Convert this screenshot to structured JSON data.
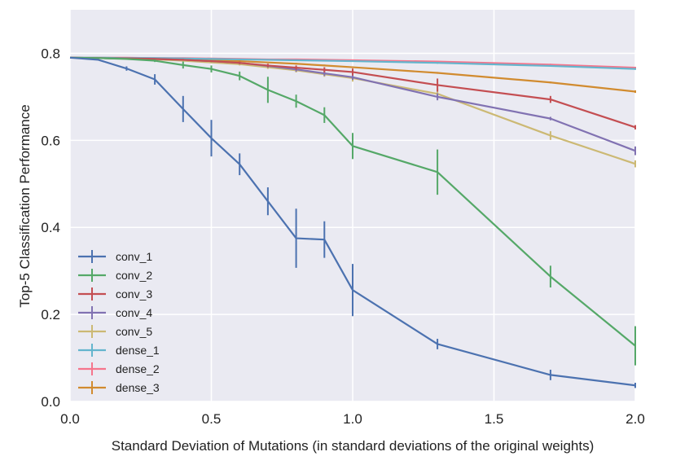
{
  "chart_data": {
    "type": "line",
    "title": "",
    "xlabel": "Standard Deviation of Mutations (in standard deviations of the original weights)",
    "ylabel": "Top-5 Classification Performance",
    "xlim": [
      0.0,
      2.0
    ],
    "ylim": [
      0.0,
      0.9
    ],
    "xticks": [
      0.0,
      0.5,
      1.0,
      1.5,
      2.0
    ],
    "xtick_labels": [
      "0.0",
      "0.5",
      "1.0",
      "1.5",
      "2.0"
    ],
    "yticks": [
      0.0,
      0.2,
      0.4,
      0.6,
      0.8
    ],
    "ytick_labels": [
      "0.0",
      "0.2",
      "0.4",
      "0.6",
      "0.8"
    ],
    "grid": true,
    "legend_position": "lower-left",
    "series": [
      {
        "name": "conv_1",
        "color": "#4c72b0",
        "x": [
          0.0,
          0.1,
          0.2,
          0.3,
          0.4,
          0.5,
          0.6,
          0.7,
          0.8,
          0.9,
          1.0,
          1.3,
          1.7,
          2.0
        ],
        "y": [
          0.79,
          0.785,
          0.765,
          0.74,
          0.672,
          0.605,
          0.545,
          0.46,
          0.375,
          0.372,
          0.256,
          0.132,
          0.061,
          0.037
        ],
        "err": [
          0.0,
          0.0,
          0.005,
          0.012,
          0.03,
          0.042,
          0.025,
          0.032,
          0.068,
          0.042,
          0.06,
          0.012,
          0.012,
          0.006
        ]
      },
      {
        "name": "conv_2",
        "color": "#55a868",
        "x": [
          0.0,
          0.1,
          0.2,
          0.3,
          0.4,
          0.5,
          0.6,
          0.7,
          0.8,
          0.9,
          1.0,
          1.3,
          1.7,
          2.0
        ],
        "y": [
          0.79,
          0.789,
          0.787,
          0.783,
          0.773,
          0.764,
          0.748,
          0.716,
          0.69,
          0.658,
          0.587,
          0.527,
          0.287,
          0.128
        ],
        "err": [
          0.0,
          0.0,
          0.002,
          0.003,
          0.008,
          0.008,
          0.01,
          0.03,
          0.015,
          0.018,
          0.03,
          0.052,
          0.025,
          0.045
        ]
      },
      {
        "name": "conv_3",
        "color": "#c44e52",
        "x": [
          0.0,
          0.1,
          0.2,
          0.3,
          0.4,
          0.5,
          0.6,
          0.7,
          0.8,
          0.9,
          1.0,
          1.3,
          1.7,
          2.0
        ],
        "y": [
          0.79,
          0.789,
          0.788,
          0.787,
          0.785,
          0.782,
          0.778,
          0.772,
          0.767,
          0.762,
          0.757,
          0.727,
          0.694,
          0.63
        ],
        "err": [
          0.0,
          0.0,
          0.001,
          0.001,
          0.002,
          0.002,
          0.003,
          0.004,
          0.005,
          0.006,
          0.008,
          0.015,
          0.008,
          0.005
        ]
      },
      {
        "name": "conv_4",
        "color": "#8172b2",
        "x": [
          0.0,
          0.1,
          0.2,
          0.3,
          0.4,
          0.5,
          0.6,
          0.7,
          0.8,
          0.9,
          1.0,
          1.3,
          1.7,
          2.0
        ],
        "y": [
          0.79,
          0.789,
          0.788,
          0.787,
          0.785,
          0.782,
          0.778,
          0.771,
          0.763,
          0.754,
          0.745,
          0.7,
          0.65,
          0.576
        ],
        "err": [
          0.0,
          0.0,
          0.001,
          0.001,
          0.002,
          0.002,
          0.003,
          0.004,
          0.005,
          0.006,
          0.006,
          0.008,
          0.004,
          0.01
        ]
      },
      {
        "name": "conv_5",
        "color": "#ccb974",
        "x": [
          0.0,
          0.1,
          0.2,
          0.3,
          0.4,
          0.5,
          0.6,
          0.7,
          0.8,
          0.9,
          1.0,
          1.3,
          1.7,
          2.0
        ],
        "y": [
          0.79,
          0.789,
          0.788,
          0.786,
          0.783,
          0.779,
          0.775,
          0.768,
          0.761,
          0.752,
          0.743,
          0.707,
          0.611,
          0.546
        ],
        "err": [
          0.0,
          0.0,
          0.001,
          0.001,
          0.002,
          0.002,
          0.003,
          0.004,
          0.005,
          0.006,
          0.008,
          0.012,
          0.01,
          0.008
        ]
      },
      {
        "name": "dense_1",
        "color": "#64b5cd",
        "x": [
          0.0,
          0.1,
          0.2,
          0.3,
          0.4,
          0.5,
          0.6,
          0.7,
          0.8,
          0.9,
          1.0,
          1.3,
          1.7,
          2.0
        ],
        "y": [
          0.79,
          0.79,
          0.789,
          0.789,
          0.788,
          0.787,
          0.786,
          0.785,
          0.784,
          0.783,
          0.782,
          0.778,
          0.771,
          0.764
        ],
        "err": [
          0.0,
          0.0,
          0.001,
          0.001,
          0.001,
          0.001,
          0.001,
          0.001,
          0.001,
          0.001,
          0.001,
          0.002,
          0.002,
          0.002
        ]
      },
      {
        "name": "dense_2",
        "color": "#f5758c",
        "x": [
          0.0,
          0.1,
          0.2,
          0.3,
          0.4,
          0.5,
          0.6,
          0.7,
          0.8,
          0.9,
          1.0,
          1.3,
          1.7,
          2.0
        ],
        "y": [
          0.79,
          0.79,
          0.79,
          0.789,
          0.789,
          0.788,
          0.787,
          0.786,
          0.786,
          0.785,
          0.784,
          0.781,
          0.774,
          0.767
        ],
        "err": [
          0.0,
          0.0,
          0.001,
          0.001,
          0.001,
          0.001,
          0.001,
          0.001,
          0.001,
          0.001,
          0.001,
          0.002,
          0.002,
          0.002
        ]
      },
      {
        "name": "dense_3",
        "color": "#d18b2f",
        "x": [
          0.0,
          0.1,
          0.2,
          0.3,
          0.4,
          0.5,
          0.6,
          0.7,
          0.8,
          0.9,
          1.0,
          1.3,
          1.7,
          2.0
        ],
        "y": [
          0.79,
          0.789,
          0.788,
          0.787,
          0.786,
          0.784,
          0.782,
          0.779,
          0.776,
          0.772,
          0.768,
          0.755,
          0.733,
          0.712
        ],
        "err": [
          0.0,
          0.0,
          0.001,
          0.001,
          0.001,
          0.001,
          0.001,
          0.001,
          0.002,
          0.002,
          0.002,
          0.002,
          0.002,
          0.003
        ]
      }
    ]
  }
}
